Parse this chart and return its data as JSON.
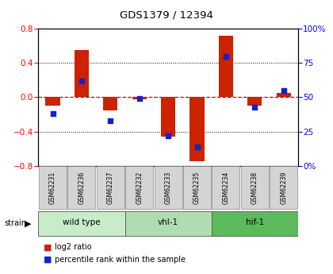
{
  "title": "GDS1379 / 12394",
  "samples": [
    "GSM62231",
    "GSM62236",
    "GSM62237",
    "GSM62232",
    "GSM62233",
    "GSM62235",
    "GSM62234",
    "GSM62238",
    "GSM62239"
  ],
  "log2_ratio": [
    -0.1,
    0.55,
    -0.15,
    -0.02,
    -0.46,
    -0.75,
    0.72,
    -0.1,
    0.05
  ],
  "percentile": [
    38,
    62,
    33,
    49,
    22,
    14,
    80,
    43,
    55
  ],
  "groups": [
    {
      "label": "wild type",
      "start": 0,
      "end": 3,
      "color": "#c8ecc8"
    },
    {
      "label": "vhl-1",
      "start": 3,
      "end": 6,
      "color": "#b0ddb0"
    },
    {
      "label": "hif-1",
      "start": 6,
      "end": 9,
      "color": "#5cba5c"
    }
  ],
  "ylim": [
    -0.8,
    0.8
  ],
  "yticks_left": [
    -0.8,
    -0.4,
    0.0,
    0.4,
    0.8
  ],
  "yticks_right": [
    0,
    25,
    50,
    75,
    100
  ],
  "ytick_right_labels": [
    "0%",
    "25",
    "50",
    "75",
    "100%"
  ],
  "bar_color": "#cc2200",
  "dot_color": "#1122cc",
  "zero_line_color": "#cc0000",
  "grid_color": "#000000",
  "bg_color": "#ffffff",
  "strain_label": "strain",
  "legend_ratio": "log2 ratio",
  "legend_percentile": "percentile rank within the sample",
  "bar_width": 0.5,
  "dot_size": 18
}
